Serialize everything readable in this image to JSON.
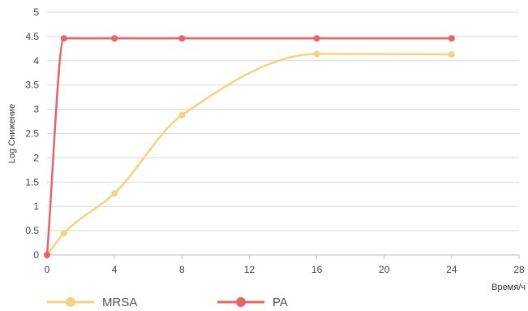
{
  "chart_data": {
    "type": "line",
    "xlabel": "Время/ч",
    "ylabel": "Log Снижение",
    "xlim": [
      0,
      28
    ],
    "ylim": [
      0,
      5
    ],
    "x_ticks": [
      0,
      4,
      8,
      12,
      16,
      20,
      24,
      28
    ],
    "x_tick_labels": [
      "0",
      "4",
      "8",
      "12",
      "16",
      "20",
      "24",
      "28"
    ],
    "y_ticks": [
      0,
      0.5,
      1,
      1.5,
      2,
      2.5,
      3,
      3.5,
      4,
      4.5,
      5
    ],
    "y_tick_labels": [
      "0",
      "0.5",
      "1",
      "1.5",
      "2",
      "2.5",
      "3",
      "3.5",
      "4",
      "4.5",
      "5"
    ],
    "grid": true,
    "legend_position": "bottom-left",
    "smooth": true,
    "series": [
      {
        "name": "MRSA",
        "color": "#f5d27e",
        "x": [
          0,
          1,
          4,
          8,
          16,
          24
        ],
        "y": [
          0,
          0.45,
          1.27,
          2.88,
          4.14,
          4.13
        ]
      },
      {
        "name": "PA",
        "color": "#e8636a",
        "x": [
          0,
          1,
          4,
          8,
          16,
          24
        ],
        "y": [
          0,
          4.46,
          4.46,
          4.46,
          4.46,
          4.46
        ]
      }
    ]
  }
}
